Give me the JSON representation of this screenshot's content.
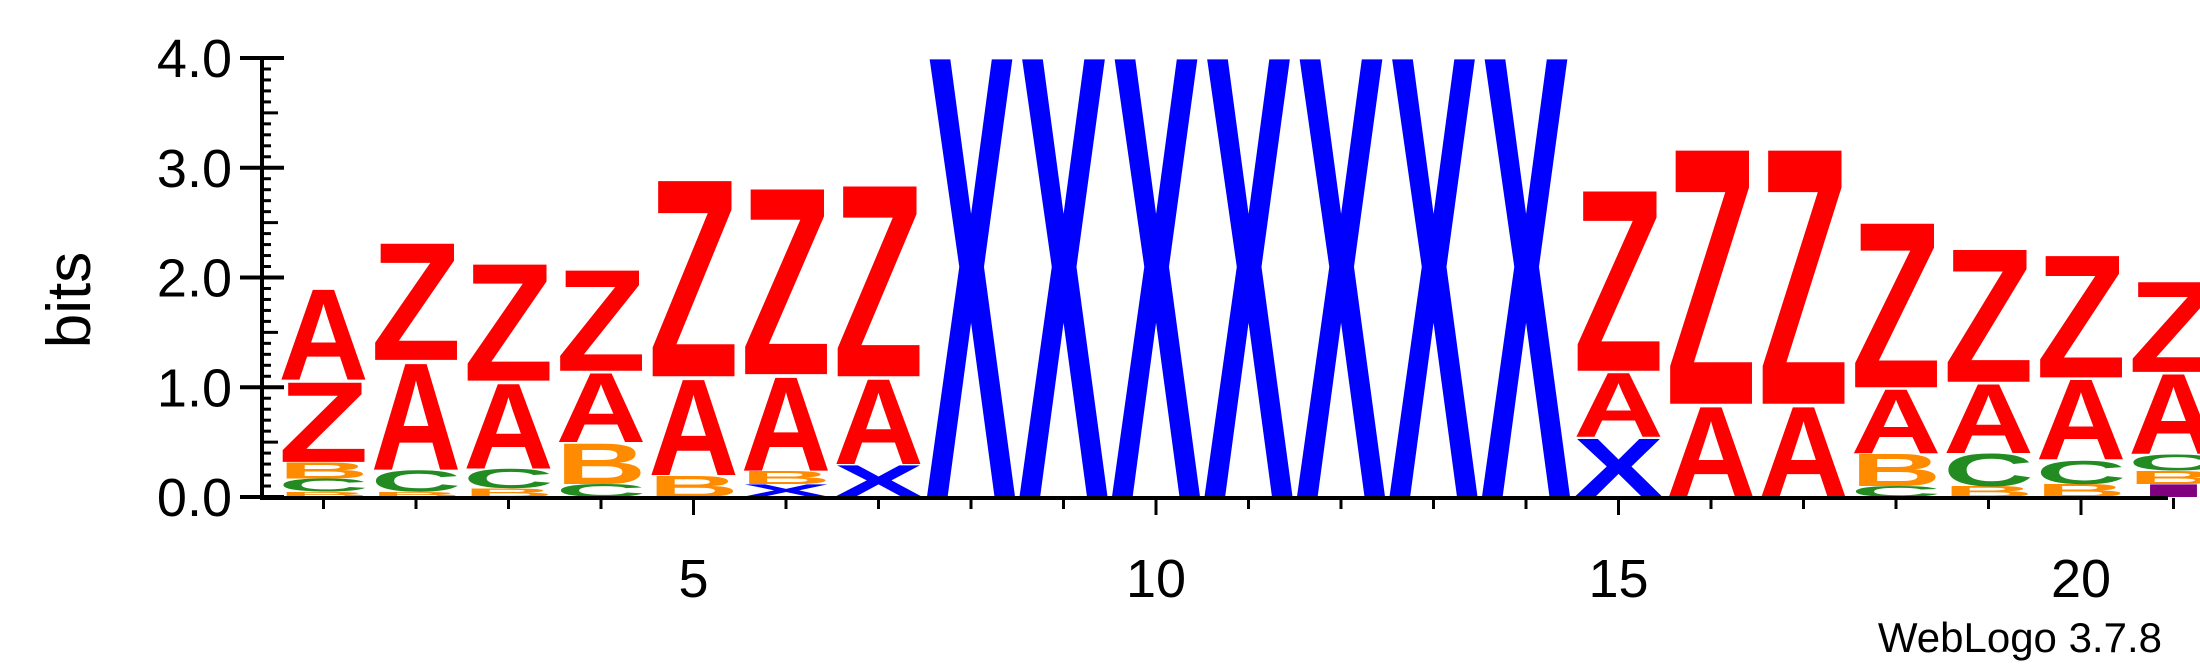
{
  "chart_data": {
    "type": "sequence-logo",
    "ylabel": "bits",
    "ylim": [
      0,
      4.0
    ],
    "y_ticks": [
      {
        "value": 0.0,
        "label": "0.0"
      },
      {
        "value": 1.0,
        "label": "1.0"
      },
      {
        "value": 2.0,
        "label": "2.0"
      },
      {
        "value": 3.0,
        "label": "3.0"
      },
      {
        "value": 4.0,
        "label": "4.0"
      }
    ],
    "x_ticks": [
      {
        "value": 5,
        "label": "5"
      },
      {
        "value": 10,
        "label": "10"
      },
      {
        "value": 15,
        "label": "15"
      },
      {
        "value": 20,
        "label": "20"
      }
    ],
    "positions_count": 21,
    "footer": "WebLogo 3.7.8",
    "colors": {
      "A": "#ff0000",
      "Z": "#ff0000",
      "X": "#0000ff",
      "B": "#ff8c00",
      "C": "#228b22",
      "I": "#800080"
    },
    "stacks": [
      {
        "position": 1,
        "letters": [
          {
            "char": "B",
            "bits": 0.05
          },
          {
            "char": "C",
            "bits": 0.12
          },
          {
            "char": "B",
            "bits": 0.15
          },
          {
            "char": "Z",
            "bits": 0.75
          },
          {
            "char": "A",
            "bits": 0.85
          }
        ]
      },
      {
        "position": 2,
        "letters": [
          {
            "char": "B",
            "bits": 0.05
          },
          {
            "char": "C",
            "bits": 0.2
          },
          {
            "char": "A",
            "bits": 1.0
          },
          {
            "char": "Z",
            "bits": 1.1
          }
        ]
      },
      {
        "position": 3,
        "letters": [
          {
            "char": "B",
            "bits": 0.08
          },
          {
            "char": "C",
            "bits": 0.18
          },
          {
            "char": "A",
            "bits": 0.8
          },
          {
            "char": "Z",
            "bits": 1.1
          }
        ]
      },
      {
        "position": 4,
        "letters": [
          {
            "char": "C",
            "bits": 0.12
          },
          {
            "char": "B",
            "bits": 0.38
          },
          {
            "char": "A",
            "bits": 0.65
          },
          {
            "char": "Z",
            "bits": 0.95
          }
        ]
      },
      {
        "position": 5,
        "letters": [
          {
            "char": "B",
            "bits": 0.2
          },
          {
            "char": "A",
            "bits": 0.9
          },
          {
            "char": "Z",
            "bits": 1.85
          }
        ]
      },
      {
        "position": 6,
        "letters": [
          {
            "char": "X",
            "bits": 0.12
          },
          {
            "char": "B",
            "bits": 0.12
          },
          {
            "char": "A",
            "bits": 0.88
          },
          {
            "char": "Z",
            "bits": 1.75
          }
        ]
      },
      {
        "position": 7,
        "letters": [
          {
            "char": "X",
            "bits": 0.3
          },
          {
            "char": "A",
            "bits": 0.8
          },
          {
            "char": "Z",
            "bits": 1.8
          }
        ]
      },
      {
        "position": 8,
        "letters": [
          {
            "char": "X",
            "bits": 4.15
          }
        ]
      },
      {
        "position": 9,
        "letters": [
          {
            "char": "X",
            "bits": 4.15
          }
        ]
      },
      {
        "position": 10,
        "letters": [
          {
            "char": "X",
            "bits": 4.15
          }
        ]
      },
      {
        "position": 11,
        "letters": [
          {
            "char": "X",
            "bits": 4.15
          }
        ]
      },
      {
        "position": 12,
        "letters": [
          {
            "char": "X",
            "bits": 4.15
          }
        ]
      },
      {
        "position": 13,
        "letters": [
          {
            "char": "X",
            "bits": 4.15
          }
        ]
      },
      {
        "position": 14,
        "letters": [
          {
            "char": "X",
            "bits": 4.15
          }
        ]
      },
      {
        "position": 15,
        "letters": [
          {
            "char": "X",
            "bits": 0.55
          },
          {
            "char": "A",
            "bits": 0.6
          },
          {
            "char": "Z",
            "bits": 1.7
          }
        ]
      },
      {
        "position": 16,
        "letters": [
          {
            "char": "A",
            "bits": 0.85
          },
          {
            "char": "Z",
            "bits": 2.4
          }
        ]
      },
      {
        "position": 17,
        "letters": [
          {
            "char": "A",
            "bits": 0.85
          },
          {
            "char": "Z",
            "bits": 2.4
          }
        ]
      },
      {
        "position": 18,
        "letters": [
          {
            "char": "C",
            "bits": 0.1
          },
          {
            "char": "B",
            "bits": 0.3
          },
          {
            "char": "A",
            "bits": 0.6
          },
          {
            "char": "Z",
            "bits": 1.55
          }
        ]
      },
      {
        "position": 19,
        "letters": [
          {
            "char": "B",
            "bits": 0.1
          },
          {
            "char": "C",
            "bits": 0.3
          },
          {
            "char": "A",
            "bits": 0.65
          },
          {
            "char": "Z",
            "bits": 1.25
          }
        ]
      },
      {
        "position": 20,
        "letters": [
          {
            "char": "B",
            "bits": 0.12
          },
          {
            "char": "C",
            "bits": 0.22
          },
          {
            "char": "A",
            "bits": 0.75
          },
          {
            "char": "Z",
            "bits": 1.15
          }
        ]
      },
      {
        "position": 21,
        "letters": [
          {
            "char": "I",
            "bits": 0.12
          },
          {
            "char": "B",
            "bits": 0.12
          },
          {
            "char": "C",
            "bits": 0.15
          },
          {
            "char": "A",
            "bits": 0.75
          },
          {
            "char": "Z",
            "bits": 0.85
          }
        ]
      }
    ]
  }
}
